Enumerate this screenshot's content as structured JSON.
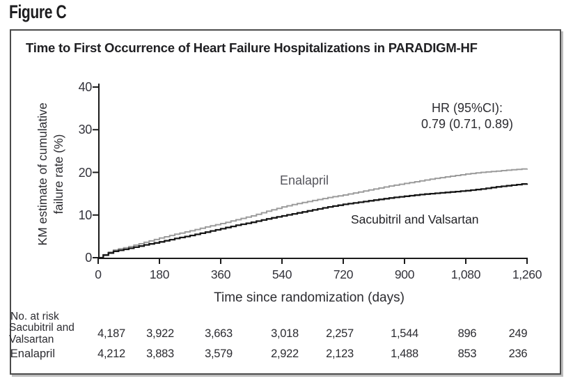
{
  "figure": {
    "label": "Figure C"
  },
  "chart_data": {
    "type": "line",
    "subtype": "kaplan_meier_step",
    "title": "Time to First Occurrence of Heart Failure Hospitalizations in PARADIGM-HF",
    "xlabel": "Time since randomization (days)",
    "ylabel": "KM estimate of cumulative failure rate (%)",
    "ylabel_lines": [
      "KM estimate of cumulative",
      "failure rate (%)"
    ],
    "xlim": [
      0,
      1260
    ],
    "ylim": [
      0,
      40
    ],
    "xticks": [
      0,
      180,
      360,
      540,
      720,
      900,
      1080,
      1260
    ],
    "xtick_labels": [
      "0",
      "180",
      "360",
      "540",
      "720",
      "900",
      "1,080",
      "1,260"
    ],
    "yticks": [
      0,
      10,
      20,
      30,
      40
    ],
    "ytick_labels": [
      "0",
      "10",
      "20",
      "30",
      "40"
    ],
    "grid": false,
    "legend_position": "inline-curve-labels",
    "annotation": {
      "line1": "HR (95%CI):",
      "line2": "0.79 (0.71, 0.89)"
    },
    "axis_color": "#1a1a1a",
    "series": [
      {
        "name": "Enalapril",
        "color": "#9c9c9c",
        "points": [
          [
            0,
            0
          ],
          [
            15,
            0.7
          ],
          [
            30,
            1.3
          ],
          [
            45,
            1.8
          ],
          [
            90,
            2.6
          ],
          [
            135,
            3.6
          ],
          [
            180,
            4.6
          ],
          [
            225,
            5.5
          ],
          [
            270,
            6.3
          ],
          [
            315,
            7.2
          ],
          [
            360,
            8.0
          ],
          [
            405,
            8.9
          ],
          [
            450,
            9.8
          ],
          [
            495,
            10.9
          ],
          [
            540,
            11.9
          ],
          [
            585,
            12.7
          ],
          [
            630,
            13.4
          ],
          [
            675,
            14.1
          ],
          [
            720,
            14.7
          ],
          [
            765,
            15.4
          ],
          [
            810,
            16.1
          ],
          [
            855,
            16.8
          ],
          [
            900,
            17.4
          ],
          [
            945,
            18.0
          ],
          [
            990,
            18.6
          ],
          [
            1035,
            19.1
          ],
          [
            1080,
            19.6
          ],
          [
            1125,
            20.0
          ],
          [
            1170,
            20.3
          ],
          [
            1215,
            20.6
          ],
          [
            1260,
            20.9
          ]
        ]
      },
      {
        "name": "Sacubitril and Valsartan",
        "color": "#161616",
        "points": [
          [
            0,
            0
          ],
          [
            15,
            0.6
          ],
          [
            30,
            1.1
          ],
          [
            45,
            1.5
          ],
          [
            90,
            2.2
          ],
          [
            135,
            3.0
          ],
          [
            180,
            3.7
          ],
          [
            225,
            4.5
          ],
          [
            270,
            5.2
          ],
          [
            315,
            6.0
          ],
          [
            360,
            6.8
          ],
          [
            405,
            7.6
          ],
          [
            450,
            8.3
          ],
          [
            495,
            9.1
          ],
          [
            540,
            9.8
          ],
          [
            585,
            10.5
          ],
          [
            630,
            11.2
          ],
          [
            675,
            11.9
          ],
          [
            720,
            12.5
          ],
          [
            765,
            13.0
          ],
          [
            810,
            13.5
          ],
          [
            855,
            14.0
          ],
          [
            900,
            14.4
          ],
          [
            945,
            14.8
          ],
          [
            990,
            15.1
          ],
          [
            1035,
            15.4
          ],
          [
            1080,
            15.7
          ],
          [
            1125,
            16.1
          ],
          [
            1170,
            16.6
          ],
          [
            1215,
            17.0
          ],
          [
            1260,
            17.4
          ]
        ]
      }
    ],
    "risk_table": {
      "header": "No. at risk",
      "rows": [
        {
          "label": "Sacubitril and Valsartan",
          "label_lines": [
            "Sacubitril and",
            "Valsartan"
          ],
          "counts": [
            "4,187",
            "3,922",
            "3,663",
            "3,018",
            "2,257",
            "1,544",
            "896",
            "249"
          ]
        },
        {
          "label": "Enalapril",
          "label_lines": [
            "Enalapril"
          ],
          "counts": [
            "4,212",
            "3,883",
            "3,579",
            "2,922",
            "2,123",
            "1,488",
            "853",
            "236"
          ]
        }
      ]
    }
  }
}
